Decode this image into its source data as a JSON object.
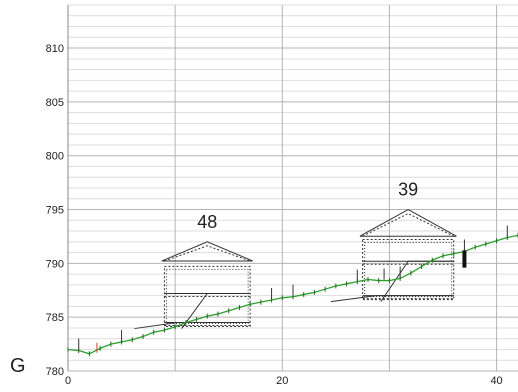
{
  "chart_data": {
    "type": "line",
    "title": "",
    "xlabel": "",
    "ylabel": "",
    "xlim": [
      0,
      42
    ],
    "ylim": [
      780,
      814
    ],
    "x_ticks": [
      0,
      20,
      40
    ],
    "y_ticks": [
      780,
      785,
      790,
      795,
      800,
      805,
      810
    ],
    "x_tick_labels": [
      "0",
      "20",
      "40"
    ],
    "y_tick_labels": [
      "780",
      "785",
      "790",
      "795",
      "800",
      "805",
      "810"
    ],
    "grid": true,
    "corner_label": "G",
    "colors": {
      "terrain": "#2e9e2e",
      "outline": "#333333",
      "grid_major": "#b4b4b4",
      "grid_minor": "#dddddd",
      "marker_red": "#d04040"
    },
    "terrain": {
      "x": [
        0,
        1,
        2,
        3,
        4,
        5,
        6,
        7,
        8,
        9,
        10,
        11,
        12,
        13,
        14,
        15,
        16,
        17,
        18,
        19,
        20,
        21,
        22,
        23,
        24,
        25,
        26,
        27,
        28,
        29,
        30,
        31,
        32,
        33,
        34,
        35,
        36,
        37,
        38,
        39,
        40,
        41,
        42
      ],
      "y": [
        782.0,
        781.9,
        781.6,
        782.1,
        782.5,
        782.7,
        782.9,
        783.2,
        783.6,
        783.8,
        784.1,
        784.5,
        784.8,
        785.1,
        785.3,
        785.6,
        785.9,
        786.2,
        786.4,
        786.6,
        786.8,
        786.9,
        787.1,
        787.3,
        787.6,
        787.9,
        788.1,
        788.3,
        788.5,
        788.4,
        788.4,
        788.6,
        789.1,
        789.7,
        790.3,
        790.7,
        790.9,
        791.1,
        791.5,
        791.8,
        792.1,
        792.4,
        792.6
      ]
    },
    "houses": [
      {
        "label": "48",
        "x_left": 9,
        "x_right": 17,
        "wall_top": 790,
        "eave": 790.5,
        "roof_peak": 792,
        "floor_lines": [
          787.2,
          784.5
        ]
      },
      {
        "label": "39",
        "x_left": 27.5,
        "x_right": 36,
        "wall_top": 792.5,
        "eave": 792.8,
        "roof_peak": 795,
        "floor_lines": [
          790.2,
          787.0
        ]
      }
    ]
  }
}
